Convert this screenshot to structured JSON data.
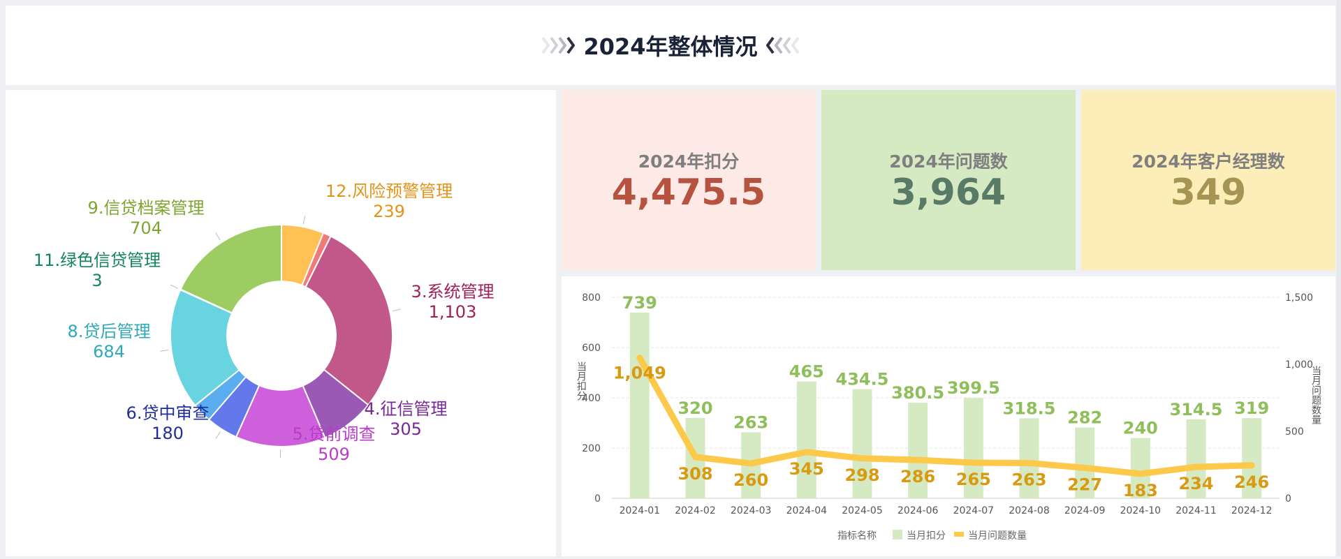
{
  "header": {
    "title": "2024年整体情况"
  },
  "kpis": [
    {
      "label": "2024年扣分",
      "value": "4,475.5"
    },
    {
      "label": "2024年问题数",
      "value": "3,964"
    },
    {
      "label": "2024年客户经理数",
      "value": "349"
    }
  ],
  "chart_data": [
    {
      "type": "pie",
      "categories": [
        "12.风险预警管理",
        "3.系统管理",
        "4.征信管理",
        "5.贷前调查",
        "6.贷中审查",
        "8.贷后管理",
        "11.绿色信贷管理",
        "9.信贷档案管理"
      ],
      "values": [
        239,
        1103,
        305,
        509,
        180,
        684,
        3,
        704
      ],
      "value_labels": [
        "239",
        "1,103",
        "305",
        "509",
        "180",
        "684",
        "3",
        "704"
      ],
      "colors": [
        "#ffc154",
        "#c2578a",
        "#9b59b6",
        "#cf60dc",
        "#6378ea",
        "#68d4e0",
        "#68d4e0",
        "#9ccc62"
      ],
      "label_colors": [
        "#e4931a",
        "#a11f55",
        "#7a2796",
        "#b93bc9",
        "#1f2e9c",
        "#2fa8b8",
        "#12865a",
        "#7da52f"
      ],
      "extra_slices": [
        {
          "color": "#f07a78",
          "value": 45
        },
        {
          "color": "#5aaef0",
          "value": 110
        }
      ],
      "inner_radius_ratio": 0.49
    },
    {
      "type": "bar",
      "categories": [
        "2024-01",
        "2024-02",
        "2024-03",
        "2024-04",
        "2024-05",
        "2024-06",
        "2024-07",
        "2024-08",
        "2024-09",
        "2024-10",
        "2024-11",
        "2024-12"
      ],
      "series": [
        {
          "name": "当月扣分",
          "type": "bar",
          "axis": "left",
          "color": "#d5eac2",
          "label_color": "#8fbf5a",
          "values": [
            739,
            320,
            263,
            465,
            434.5,
            380.5,
            399.5,
            318.5,
            282,
            240,
            314.5,
            319
          ],
          "labels": [
            "739",
            "320",
            "263",
            "465",
            "434.5",
            "380.5",
            "399.5",
            "318.5",
            "282",
            "240",
            "314.5",
            "319"
          ]
        },
        {
          "name": "当月问题数量",
          "type": "line",
          "axis": "right",
          "color": "#fdc94a",
          "label_color": "#d79a12",
          "values": [
            1049,
            308,
            260,
            345,
            298,
            286,
            265,
            263,
            227,
            183,
            234,
            246
          ],
          "labels": [
            "1,049",
            "308",
            "260",
            "345",
            "298",
            "286",
            "265",
            "263",
            "227",
            "183",
            "234",
            "246"
          ]
        }
      ],
      "ylabel": "当月扣分",
      "y2label": "当月问题数量",
      "ylim": [
        0,
        800
      ],
      "y2lim": [
        0,
        1500
      ],
      "yticks": [
        "0",
        "200",
        "400",
        "600",
        "800"
      ],
      "y2ticks": [
        "0",
        "500",
        "1,000",
        "1,500"
      ],
      "legend_title": "指标名称",
      "legend_position": "bottom-center",
      "grid": true
    }
  ]
}
